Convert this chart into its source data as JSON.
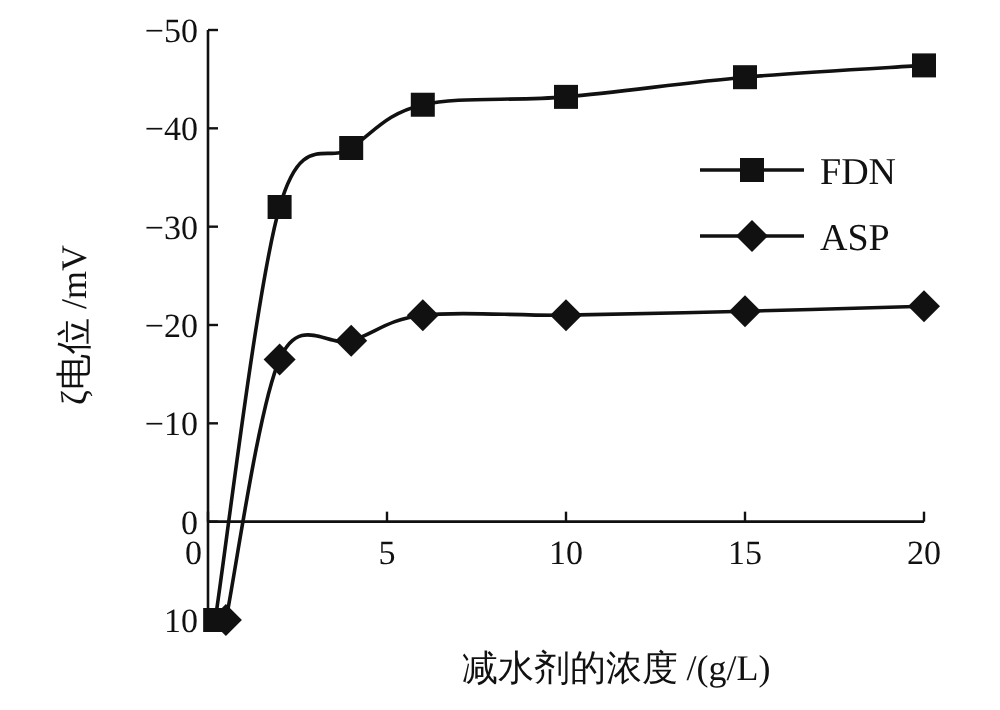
{
  "chart_data": {
    "type": "line",
    "xlabel": "减水剂的浓度 /(g/L)",
    "ylabel": "ζ电位 /mV",
    "xlim": [
      0,
      20
    ],
    "xticks": [
      0,
      5,
      10,
      15,
      20
    ],
    "ylim": [
      10,
      -50
    ],
    "yticks": [
      -50,
      -40,
      -30,
      -20,
      -10,
      0,
      10
    ],
    "legend": "right",
    "line_style": "solid",
    "series": [
      {
        "name": "FDN",
        "color": "#111111",
        "marker": "square",
        "x": [
          0.2,
          2,
          4,
          6,
          10,
          15,
          20
        ],
        "values": [
          10,
          -32,
          -38,
          -42.4,
          -43.2,
          -45.2,
          -46.4
        ]
      },
      {
        "name": "ASP",
        "color": "#111111",
        "marker": "diamond",
        "x": [
          0.5,
          2,
          4,
          6,
          10,
          15,
          20
        ],
        "values": [
          10,
          -16.5,
          -18.4,
          -21,
          -21,
          -21.4,
          -21.9
        ]
      }
    ]
  }
}
